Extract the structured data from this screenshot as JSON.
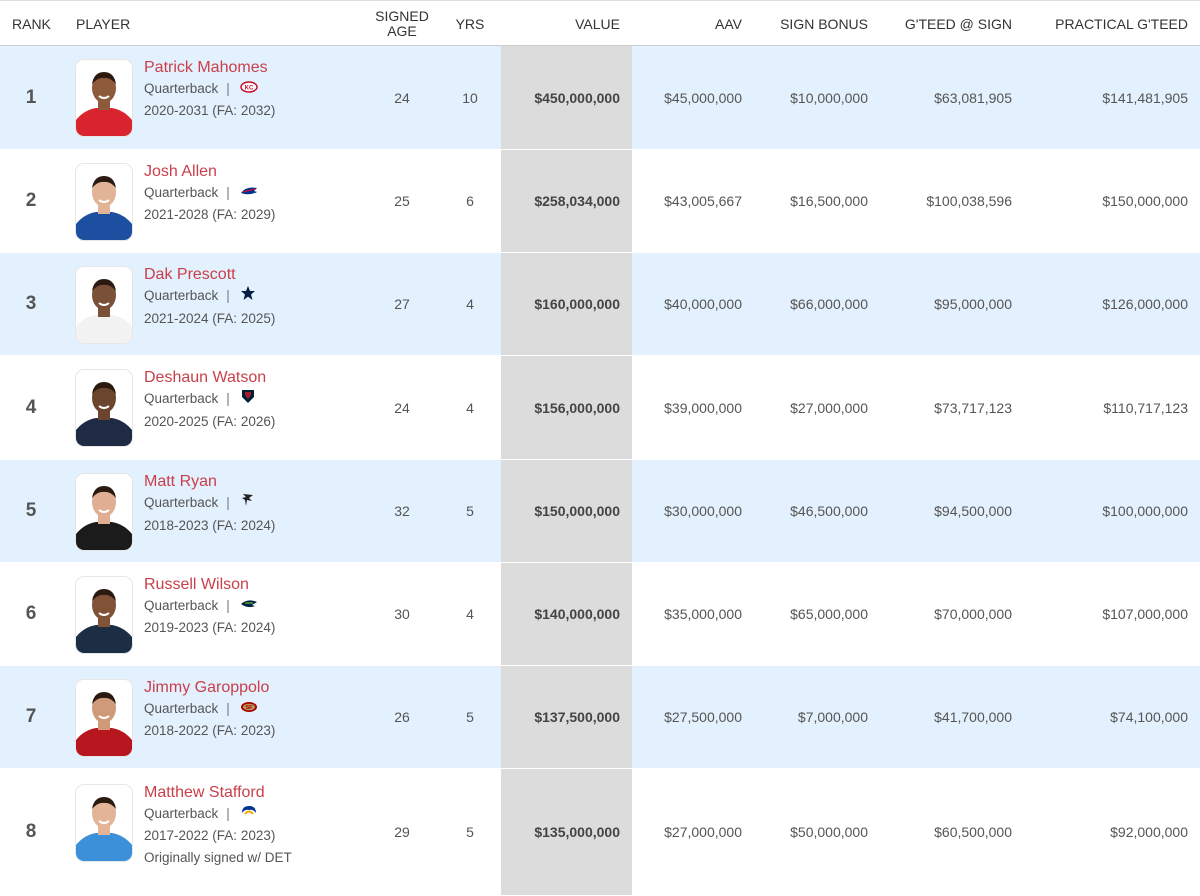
{
  "headers": {
    "rank": "RANK",
    "player": "PLAYER",
    "signed_age_1": "SIGNED",
    "signed_age_2": "AGE",
    "yrs": "YRS",
    "value": "VALUE",
    "aav": "AAV",
    "sign_bonus": "SIGN BONUS",
    "gteed_at_sign": "G'TEED @ SIGN",
    "practical_gteed": "PRACTICAL G'TEED"
  },
  "rows": [
    {
      "rank": "1",
      "name": "Patrick Mahomes",
      "position": "Quarterback",
      "team_icon": "chiefs-logo-icon",
      "years_range": "2020-2031 (FA: 2032)",
      "note": "",
      "age": "24",
      "yrs": "10",
      "value": "$450,000,000",
      "aav": "$45,000,000",
      "sign_bonus": "$10,000,000",
      "gteed_at_sign": "$63,081,905",
      "practical_gteed": "$141,481,905",
      "jersey_color": "#d9232e",
      "skin": "#8d5a3b"
    },
    {
      "rank": "2",
      "name": "Josh Allen",
      "position": "Quarterback",
      "team_icon": "bills-logo-icon",
      "years_range": "2021-2028 (FA: 2029)",
      "note": "",
      "age": "25",
      "yrs": "6",
      "value": "$258,034,000",
      "aav": "$43,005,667",
      "sign_bonus": "$16,500,000",
      "gteed_at_sign": "$100,038,596",
      "practical_gteed": "$150,000,000",
      "jersey_color": "#1d4fa0",
      "skin": "#e2b497"
    },
    {
      "rank": "3",
      "name": "Dak Prescott",
      "position": "Quarterback",
      "team_icon": "cowboys-logo-icon",
      "years_range": "2021-2024 (FA: 2025)",
      "note": "",
      "age": "27",
      "yrs": "4",
      "value": "$160,000,000",
      "aav": "$40,000,000",
      "sign_bonus": "$66,000,000",
      "gteed_at_sign": "$95,000,000",
      "practical_gteed": "$126,000,000",
      "jersey_color": "#f2f2f2",
      "skin": "#7a5138"
    },
    {
      "rank": "4",
      "name": "Deshaun Watson",
      "position": "Quarterback",
      "team_icon": "texans-logo-icon",
      "years_range": "2020-2025 (FA: 2026)",
      "note": "",
      "age": "24",
      "yrs": "4",
      "value": "$156,000,000",
      "aav": "$39,000,000",
      "sign_bonus": "$27,000,000",
      "gteed_at_sign": "$73,717,123",
      "practical_gteed": "$110,717,123",
      "jersey_color": "#1f2a44",
      "skin": "#6b452e"
    },
    {
      "rank": "5",
      "name": "Matt Ryan",
      "position": "Quarterback",
      "team_icon": "falcons-logo-icon",
      "years_range": "2018-2023 (FA: 2024)",
      "note": "",
      "age": "32",
      "yrs": "5",
      "value": "$150,000,000",
      "aav": "$30,000,000",
      "sign_bonus": "$46,500,000",
      "gteed_at_sign": "$94,500,000",
      "practical_gteed": "$100,000,000",
      "jersey_color": "#1b1b1b",
      "skin": "#e0ae92"
    },
    {
      "rank": "6",
      "name": "Russell Wilson",
      "position": "Quarterback",
      "team_icon": "seahawks-logo-icon",
      "years_range": "2019-2023 (FA: 2024)",
      "note": "",
      "age": "30",
      "yrs": "4",
      "value": "$140,000,000",
      "aav": "$35,000,000",
      "sign_bonus": "$65,000,000",
      "gteed_at_sign": "$70,000,000",
      "practical_gteed": "$107,000,000",
      "jersey_color": "#1c2e44",
      "skin": "#805237"
    },
    {
      "rank": "7",
      "name": "Jimmy Garoppolo",
      "position": "Quarterback",
      "team_icon": "49ers-logo-icon",
      "years_range": "2018-2022 (FA: 2023)",
      "note": "",
      "age": "26",
      "yrs": "5",
      "value": "$137,500,000",
      "aav": "$27,500,000",
      "sign_bonus": "$7,000,000",
      "gteed_at_sign": "$41,700,000",
      "practical_gteed": "$74,100,000",
      "jersey_color": "#b7161e",
      "skin": "#cf9a78"
    },
    {
      "rank": "8",
      "name": "Matthew Stafford",
      "position": "Quarterback",
      "team_icon": "rams-logo-icon",
      "years_range": "2017-2022 (FA: 2023)",
      "note": "Originally signed w/ DET",
      "age": "29",
      "yrs": "5",
      "value": "$135,000,000",
      "aav": "$27,000,000",
      "sign_bonus": "$50,000,000",
      "gteed_at_sign": "$60,500,000",
      "practical_gteed": "$92,000,000",
      "jersey_color": "#3c8fd9",
      "skin": "#e3b497"
    }
  ],
  "colors": {
    "row_shade": "#e3f0fd",
    "value_column_bg": "#dcdcdc",
    "player_name": "#c9404a"
  }
}
